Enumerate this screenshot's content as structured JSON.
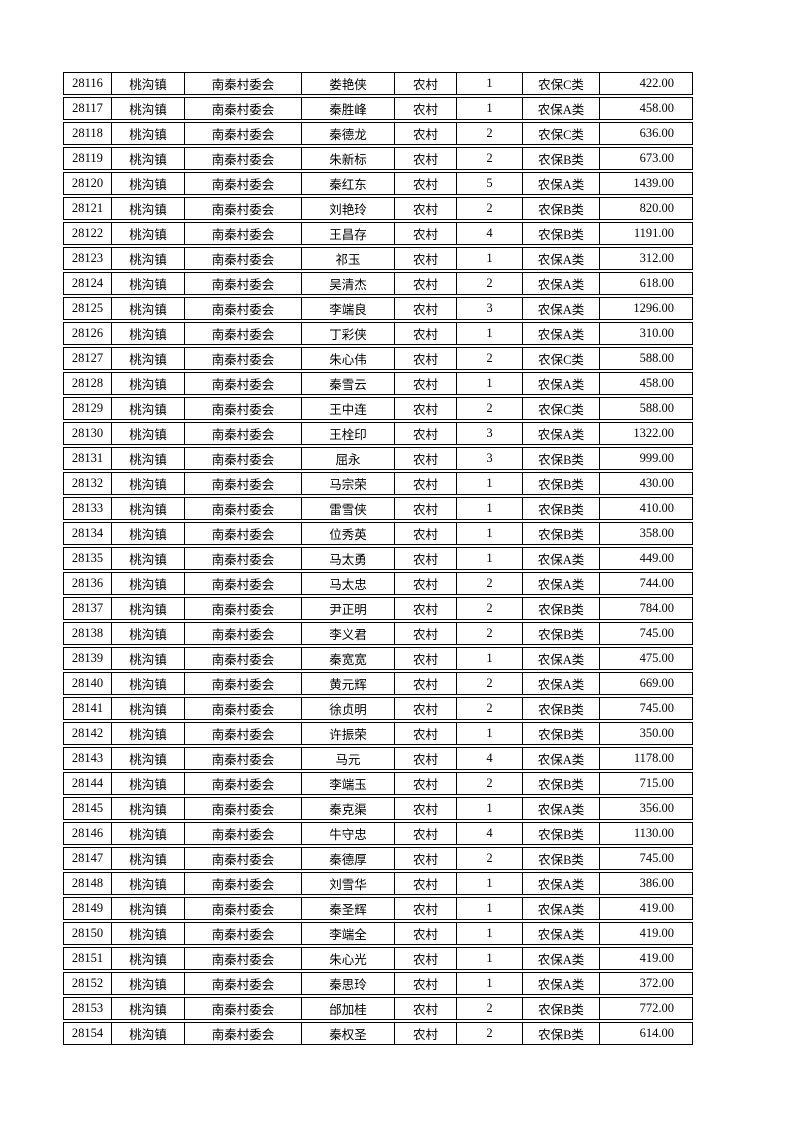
{
  "page": {
    "background": "#ffffff",
    "border_color": "#000000",
    "text_color": "#000000"
  },
  "table": {
    "columns": [
      "id",
      "town",
      "village_committee",
      "name",
      "residence_type",
      "person_count",
      "insurance_category",
      "amount"
    ],
    "rows": [
      [
        "28116",
        "桃沟镇",
        "南秦村委会",
        "娄艳侠",
        "农村",
        "1",
        "农保C类",
        "422.00"
      ],
      [
        "28117",
        "桃沟镇",
        "南秦村委会",
        "秦胜峰",
        "农村",
        "1",
        "农保A类",
        "458.00"
      ],
      [
        "28118",
        "桃沟镇",
        "南秦村委会",
        "秦德龙",
        "农村",
        "2",
        "农保C类",
        "636.00"
      ],
      [
        "28119",
        "桃沟镇",
        "南秦村委会",
        "朱新标",
        "农村",
        "2",
        "农保B类",
        "673.00"
      ],
      [
        "28120",
        "桃沟镇",
        "南秦村委会",
        "秦红东",
        "农村",
        "5",
        "农保A类",
        "1439.00"
      ],
      [
        "28121",
        "桃沟镇",
        "南秦村委会",
        "刘艳玲",
        "农村",
        "2",
        "农保B类",
        "820.00"
      ],
      [
        "28122",
        "桃沟镇",
        "南秦村委会",
        "王昌存",
        "农村",
        "4",
        "农保B类",
        "1191.00"
      ],
      [
        "28123",
        "桃沟镇",
        "南秦村委会",
        "祁玉",
        "农村",
        "1",
        "农保A类",
        "312.00"
      ],
      [
        "28124",
        "桃沟镇",
        "南秦村委会",
        "吴清杰",
        "农村",
        "2",
        "农保A类",
        "618.00"
      ],
      [
        "28125",
        "桃沟镇",
        "南秦村委会",
        "李端良",
        "农村",
        "3",
        "农保A类",
        "1296.00"
      ],
      [
        "28126",
        "桃沟镇",
        "南秦村委会",
        "丁彩侠",
        "农村",
        "1",
        "农保A类",
        "310.00"
      ],
      [
        "28127",
        "桃沟镇",
        "南秦村委会",
        "朱心伟",
        "农村",
        "2",
        "农保C类",
        "588.00"
      ],
      [
        "28128",
        "桃沟镇",
        "南秦村委会",
        "秦雪云",
        "农村",
        "1",
        "农保A类",
        "458.00"
      ],
      [
        "28129",
        "桃沟镇",
        "南秦村委会",
        "王中连",
        "农村",
        "2",
        "农保C类",
        "588.00"
      ],
      [
        "28130",
        "桃沟镇",
        "南秦村委会",
        "王栓印",
        "农村",
        "3",
        "农保A类",
        "1322.00"
      ],
      [
        "28131",
        "桃沟镇",
        "南秦村委会",
        "屈永",
        "农村",
        "3",
        "农保B类",
        "999.00"
      ],
      [
        "28132",
        "桃沟镇",
        "南秦村委会",
        "马宗荣",
        "农村",
        "1",
        "农保B类",
        "430.00"
      ],
      [
        "28133",
        "桃沟镇",
        "南秦村委会",
        "雷雪侠",
        "农村",
        "1",
        "农保B类",
        "410.00"
      ],
      [
        "28134",
        "桃沟镇",
        "南秦村委会",
        "位秀英",
        "农村",
        "1",
        "农保B类",
        "358.00"
      ],
      [
        "28135",
        "桃沟镇",
        "南秦村委会",
        "马太勇",
        "农村",
        "1",
        "农保A类",
        "449.00"
      ],
      [
        "28136",
        "桃沟镇",
        "南秦村委会",
        "马太忠",
        "农村",
        "2",
        "农保A类",
        "744.00"
      ],
      [
        "28137",
        "桃沟镇",
        "南秦村委会",
        "尹正明",
        "农村",
        "2",
        "农保B类",
        "784.00"
      ],
      [
        "28138",
        "桃沟镇",
        "南秦村委会",
        "李义君",
        "农村",
        "2",
        "农保B类",
        "745.00"
      ],
      [
        "28139",
        "桃沟镇",
        "南秦村委会",
        "秦宽宽",
        "农村",
        "1",
        "农保A类",
        "475.00"
      ],
      [
        "28140",
        "桃沟镇",
        "南秦村委会",
        "黄元辉",
        "农村",
        "2",
        "农保A类",
        "669.00"
      ],
      [
        "28141",
        "桃沟镇",
        "南秦村委会",
        "徐贞明",
        "农村",
        "2",
        "农保B类",
        "745.00"
      ],
      [
        "28142",
        "桃沟镇",
        "南秦村委会",
        "许振荣",
        "农村",
        "1",
        "农保B类",
        "350.00"
      ],
      [
        "28143",
        "桃沟镇",
        "南秦村委会",
        "马元",
        "农村",
        "4",
        "农保A类",
        "1178.00"
      ],
      [
        "28144",
        "桃沟镇",
        "南秦村委会",
        "李端玉",
        "农村",
        "2",
        "农保B类",
        "715.00"
      ],
      [
        "28145",
        "桃沟镇",
        "南秦村委会",
        "秦克渠",
        "农村",
        "1",
        "农保A类",
        "356.00"
      ],
      [
        "28146",
        "桃沟镇",
        "南秦村委会",
        "牛守忠",
        "农村",
        "4",
        "农保B类",
        "1130.00"
      ],
      [
        "28147",
        "桃沟镇",
        "南秦村委会",
        "秦德厚",
        "农村",
        "2",
        "农保B类",
        "745.00"
      ],
      [
        "28148",
        "桃沟镇",
        "南秦村委会",
        "刘雪华",
        "农村",
        "1",
        "农保A类",
        "386.00"
      ],
      [
        "28149",
        "桃沟镇",
        "南秦村委会",
        "秦圣辉",
        "农村",
        "1",
        "农保A类",
        "419.00"
      ],
      [
        "28150",
        "桃沟镇",
        "南秦村委会",
        "李端全",
        "农村",
        "1",
        "农保A类",
        "419.00"
      ],
      [
        "28151",
        "桃沟镇",
        "南秦村委会",
        "朱心光",
        "农村",
        "1",
        "农保A类",
        "419.00"
      ],
      [
        "28152",
        "桃沟镇",
        "南秦村委会",
        "秦思玲",
        "农村",
        "1",
        "农保A类",
        "372.00"
      ],
      [
        "28153",
        "桃沟镇",
        "南秦村委会",
        "邰加桂",
        "农村",
        "2",
        "农保B类",
        "772.00"
      ],
      [
        "28154",
        "桃沟镇",
        "南秦村委会",
        "秦权圣",
        "农村",
        "2",
        "农保B类",
        "614.00"
      ]
    ]
  }
}
